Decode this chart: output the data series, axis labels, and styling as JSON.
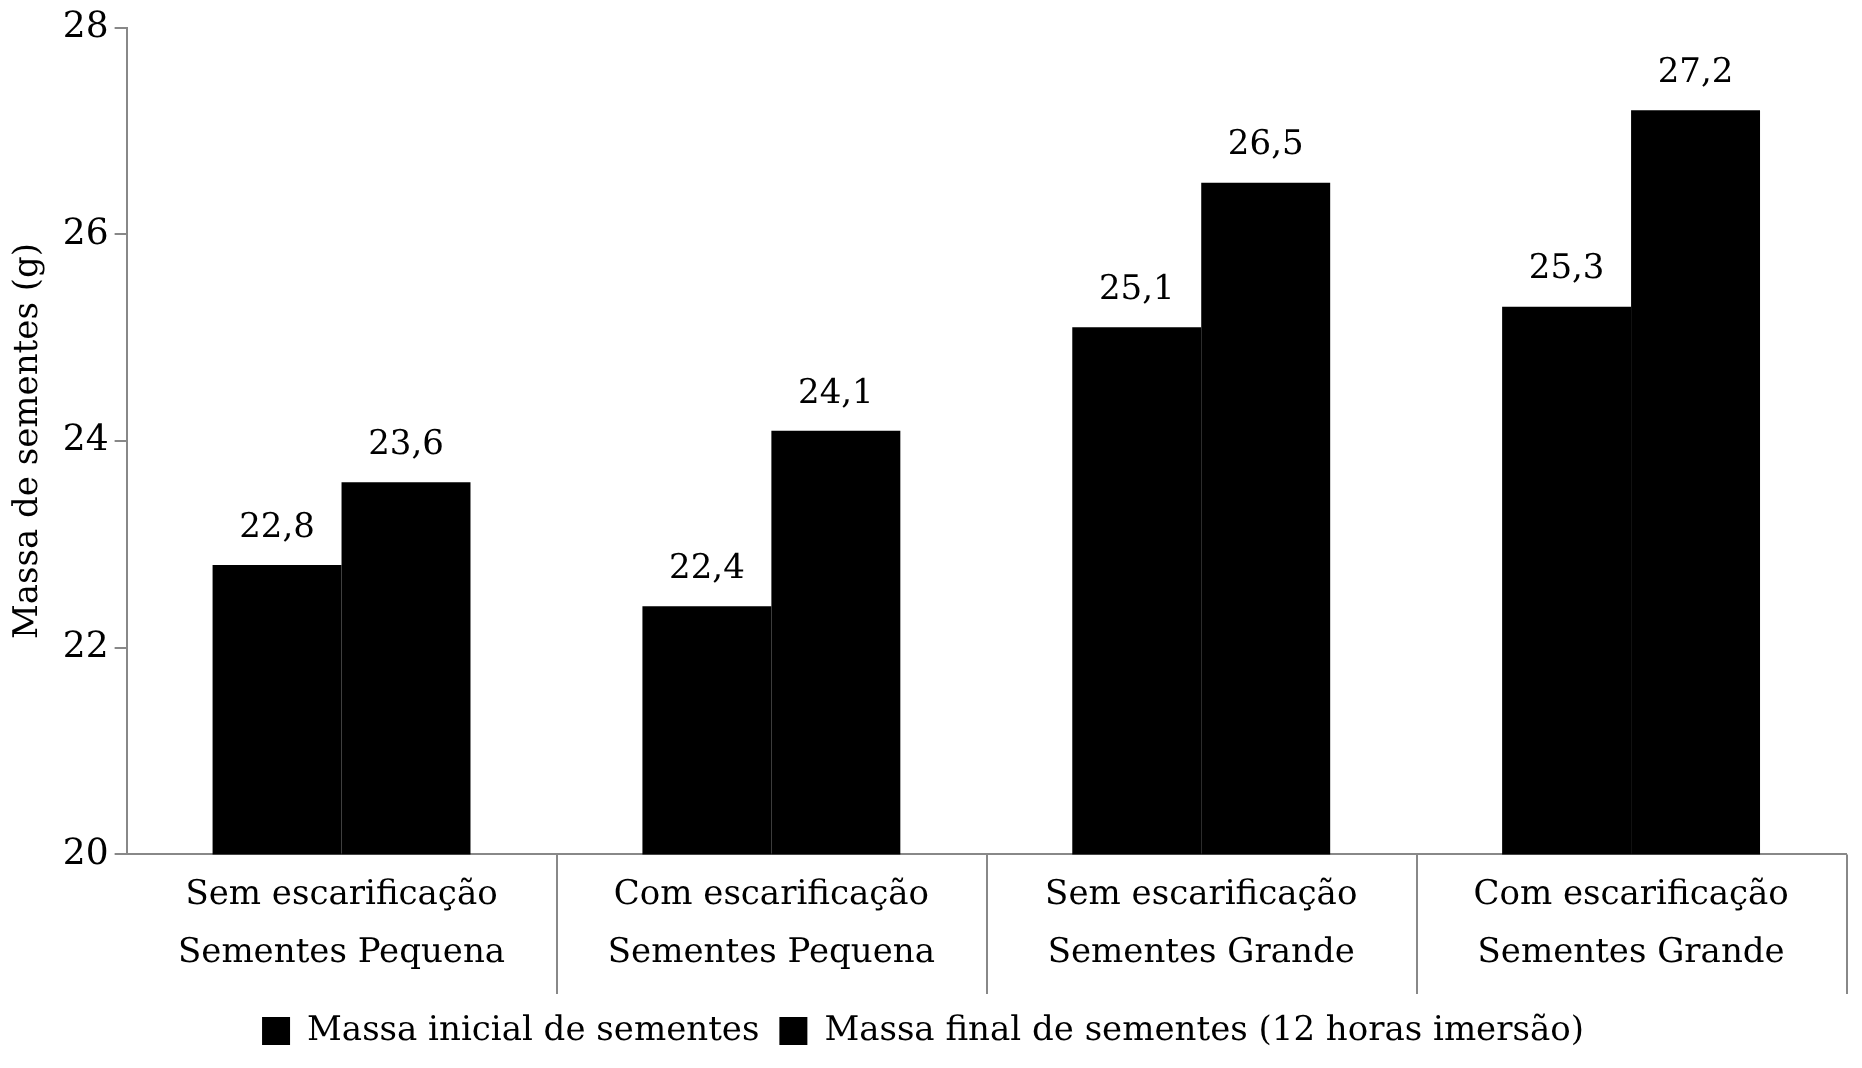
{
  "chart_data": {
    "type": "bar",
    "ylabel": "Massa de sementes (g)",
    "categories": [
      "Sem escarificação\nSementes Pequena",
      "Com escarificação\nSementes Pequena",
      "Sem escarificação\nSementes Grande",
      "Com escarificação\nSementes Grande"
    ],
    "series": [
      {
        "name": "Massa inicial de sementes",
        "color": "#000000",
        "values": [
          22.8,
          22.4,
          25.1,
          25.3
        ],
        "value_labels": [
          "22,8",
          "22,4",
          "25,1",
          "25,3"
        ]
      },
      {
        "name": "Massa final de sementes (12 horas imersão)",
        "color": "#000000",
        "values": [
          23.6,
          24.1,
          26.5,
          27.2
        ],
        "value_labels": [
          "23,6",
          "24,1",
          "26,5",
          "27,2"
        ]
      }
    ],
    "ylim": [
      20,
      28
    ],
    "yticks": [
      20,
      22,
      24,
      26,
      28
    ],
    "grid": false,
    "legend": "bottom"
  }
}
